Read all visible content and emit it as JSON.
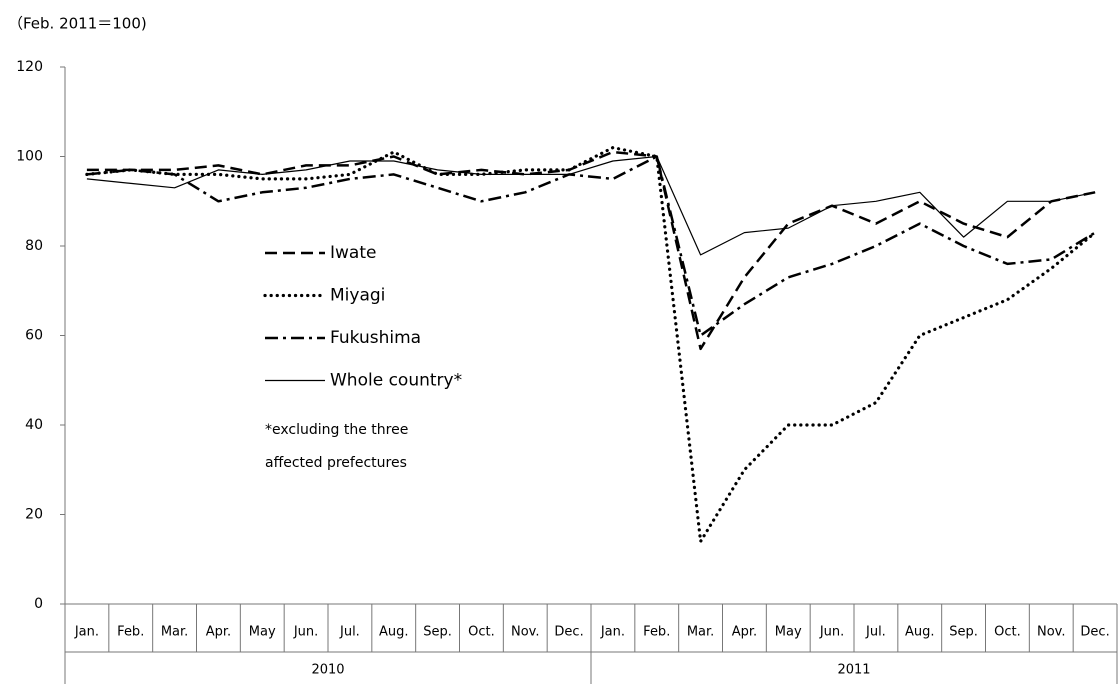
{
  "chart_data": {
    "type": "line",
    "y_label": "（Feb. 2011＝100)",
    "categories": [
      "Jan.",
      "Feb.",
      "Mar.",
      "Apr.",
      "May",
      "Jun.",
      "Jul.",
      "Aug.",
      "Sep.",
      "Oct.",
      "Nov.",
      "Dec.",
      "Jan.",
      "Feb.",
      "Mar.",
      "Apr.",
      "May",
      "Jun.",
      "Jul.",
      "Aug.",
      "Sep.",
      "Oct.",
      "Nov.",
      "Dec."
    ],
    "years": [
      "2010",
      "2011"
    ],
    "ylim": [
      0,
      120
    ],
    "yticks": [
      0,
      20,
      40,
      60,
      80,
      100,
      120
    ],
    "grid": false,
    "series": [
      {
        "name": "Iwate",
        "color": "#000000",
        "dash": "dashed",
        "values": [
          97,
          97,
          97,
          98,
          96,
          98,
          98,
          100,
          96,
          97,
          96,
          97,
          101,
          100,
          57,
          73,
          85,
          89,
          85,
          90,
          85,
          82,
          90,
          92
        ]
      },
      {
        "name": "Miyagi",
        "color": "#000000",
        "dash": "dotted",
        "values": [
          96,
          97,
          96,
          96,
          95,
          95,
          96,
          101,
          96,
          96,
          97,
          97,
          102,
          100,
          14,
          30,
          40,
          40,
          45,
          60,
          64,
          68,
          75,
          83
        ]
      },
      {
        "name": "Fukushima",
        "color": "#000000",
        "dash": "dashdot",
        "values": [
          96,
          97,
          96,
          90,
          92,
          93,
          95,
          96,
          93,
          90,
          92,
          96,
          95,
          100,
          60,
          67,
          73,
          76,
          80,
          85,
          80,
          76,
          77,
          83
        ]
      },
      {
        "name": "Whole country*",
        "color": "#000000",
        "dash": "solid",
        "values": [
          95,
          94,
          93,
          97,
          96,
          97,
          99,
          99,
          97,
          96,
          96,
          96,
          99,
          100,
          78,
          83,
          84,
          89,
          90,
          92,
          82,
          90,
          90,
          92
        ]
      }
    ],
    "note": [
      "*excluding the three",
      "affected prefectures"
    ]
  }
}
